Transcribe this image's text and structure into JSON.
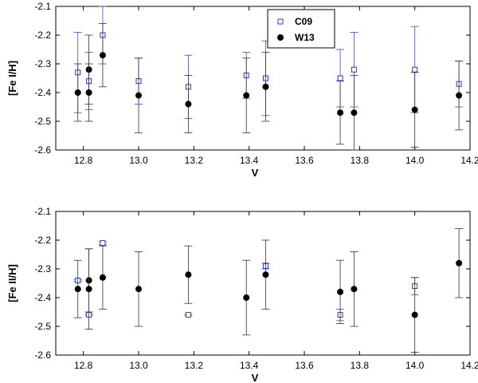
{
  "chart_data": [
    {
      "type": "scatter",
      "xlabel": "V",
      "ylabel": "[Fe I/H]",
      "xlim": [
        12.7,
        14.2
      ],
      "ylim": [
        -2.6,
        -2.1
      ],
      "xticks": [
        12.8,
        13.0,
        13.2,
        13.4,
        13.6,
        13.8,
        14.0,
        14.2
      ],
      "xtick_labels": [
        "12.8",
        "13.0",
        "13.2",
        "13.4",
        "13.6",
        "13.8",
        "14.0",
        "14.2"
      ],
      "yticks": [
        -2.1,
        -2.2,
        -2.3,
        -2.4,
        -2.5,
        -2.6
      ],
      "ytick_labels": [
        "-2.1",
        "-2.2",
        "-2.3",
        "-2.4",
        "-2.5",
        "-2.6"
      ],
      "legend": [
        "C09",
        "W13"
      ],
      "legend_position": "top-center",
      "series": [
        {
          "name": "C09",
          "marker": "open-square",
          "color": "#2a3bd0",
          "x": [
            12.78,
            12.82,
            12.87,
            13.0,
            13.18,
            13.39,
            13.46,
            13.73,
            13.78,
            14.0,
            14.16
          ],
          "y": [
            -2.33,
            -2.36,
            -2.2,
            -2.36,
            -2.38,
            -2.34,
            -2.35,
            -2.35,
            -2.32,
            -2.32,
            -2.37
          ],
          "err": [
            0.14,
            0.1,
            0.1,
            0.08,
            0.11,
            0.08,
            0.13,
            0.1,
            0.13,
            0.15,
            0.08
          ]
        },
        {
          "name": "W13",
          "marker": "filled-circle",
          "color": "#000000",
          "x": [
            12.78,
            12.82,
            12.82,
            12.87,
            13.0,
            13.18,
            13.39,
            13.46,
            13.73,
            13.78,
            14.0,
            14.16
          ],
          "y": [
            -2.4,
            -2.32,
            -2.4,
            -2.27,
            -2.41,
            -2.44,
            -2.41,
            -2.38,
            -2.47,
            -2.47,
            -2.46,
            -2.41
          ],
          "err": [
            0.1,
            0.12,
            0.1,
            0.11,
            0.13,
            0.1,
            0.13,
            0.12,
            0.11,
            0.13,
            0.13,
            0.12
          ]
        }
      ]
    },
    {
      "type": "scatter",
      "xlabel": "V",
      "ylabel": "[Fe II/H]",
      "xlim": [
        12.7,
        14.2
      ],
      "ylim": [
        -2.6,
        -2.1
      ],
      "xticks": [
        12.8,
        13.0,
        13.2,
        13.4,
        13.6,
        13.8,
        14.0,
        14.2
      ],
      "xtick_labels": [
        "12.8",
        "13.0",
        "13.2",
        "13.4",
        "13.6",
        "13.8",
        "14.0",
        "14.2"
      ],
      "yticks": [
        -2.1,
        -2.2,
        -2.3,
        -2.4,
        -2.5,
        -2.6
      ],
      "ytick_labels": [
        "-2.1",
        "-2.2",
        "-2.3",
        "-2.4",
        "-2.5",
        "-2.6"
      ],
      "series": [
        {
          "name": "C09",
          "marker": "open-square",
          "color": "#2a3bd0",
          "x": [
            12.78,
            12.82,
            12.87,
            13.18,
            13.46,
            13.73,
            14.0
          ],
          "y": [
            -2.34,
            -2.46,
            -2.21,
            -2.46,
            -2.29,
            -2.46,
            -2.36
          ],
          "err": [
            0.003,
            0.003,
            0.005,
            0.002,
            0.01,
            0.02,
            0.03
          ]
        },
        {
          "name": "W13",
          "marker": "filled-circle",
          "color": "#000000",
          "x": [
            12.78,
            12.82,
            12.82,
            12.87,
            13.0,
            13.18,
            13.39,
            13.46,
            13.73,
            13.78,
            14.0,
            14.16
          ],
          "y": [
            -2.37,
            -2.34,
            -2.37,
            -2.33,
            -2.37,
            -2.32,
            -2.4,
            -2.32,
            -2.38,
            -2.37,
            -2.46,
            -2.28
          ],
          "err": [
            0.1,
            0.11,
            0.14,
            0.11,
            0.13,
            0.1,
            0.13,
            0.12,
            0.11,
            0.13,
            0.13,
            0.12
          ]
        }
      ]
    }
  ]
}
